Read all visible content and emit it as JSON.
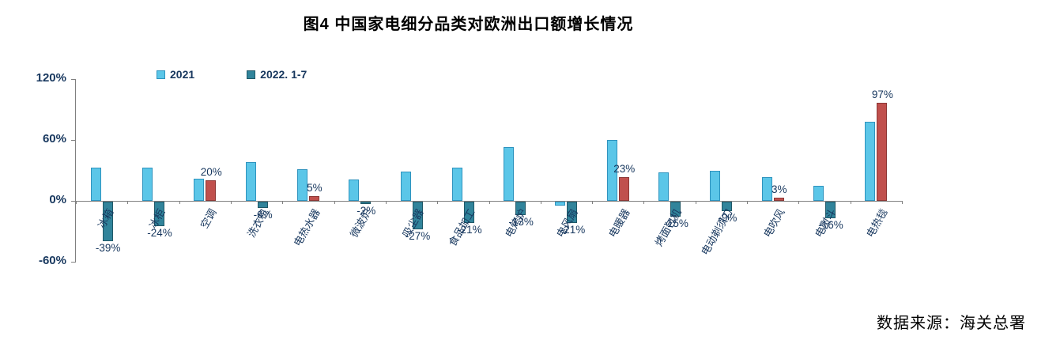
{
  "source": "数据来源：海关总署",
  "chart_data": {
    "type": "bar",
    "title": "图4  中国家电细分品类对欧洲出口额增长情况",
    "legend_position": "top-left",
    "grid": false,
    "ylim": [
      -60,
      120
    ],
    "yticks": [
      {
        "value": 120,
        "label": "120%"
      },
      {
        "value": 60,
        "label": "60%"
      },
      {
        "value": 0,
        "label": "0%"
      },
      {
        "value": -60,
        "label": "-60%"
      }
    ],
    "categories": [
      "冰箱",
      "冰柜",
      "空调",
      "洗衣机",
      "电热水器",
      "微波炉",
      "吸尘器",
      "食品加工",
      "电烤炉",
      "电风扇",
      "电暖器",
      "烤面包机",
      "电动剃须刀",
      "电吹风",
      "电熨斗",
      "电热毯"
    ],
    "series": [
      {
        "name": "2021",
        "values": [
          33,
          33,
          22,
          38,
          31,
          21,
          29,
          33,
          53,
          -4,
          60,
          28,
          30,
          23,
          15,
          78
        ],
        "color": "#5BC6E8",
        "border": "#2E93BE"
      },
      {
        "name": "2022. 1-7",
        "values": [
          -39,
          -24,
          20,
          -6,
          5,
          -2,
          -27,
          -21,
          -13,
          -21,
          23,
          -15,
          -9,
          3,
          -16,
          97
        ],
        "labels": [
          "-39%",
          "-24%",
          "20%",
          "-6%",
          "5%",
          "-2%",
          "-27%",
          "-21%",
          "-13%",
          "-21%",
          "23%",
          "-15%",
          "-9%",
          "3%",
          "-16%",
          "97%"
        ],
        "color_positive": "#C0504D",
        "border_positive": "#8C3836",
        "color_negative": "#31849B",
        "border_negative": "#205867"
      }
    ]
  }
}
